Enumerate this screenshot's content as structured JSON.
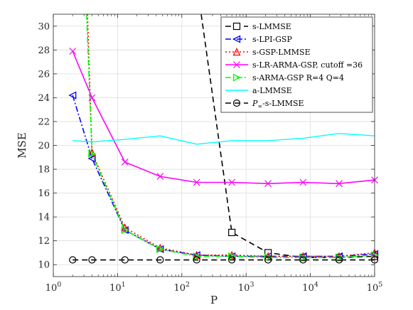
{
  "chart_data": {
    "type": "line",
    "xlabel": "P",
    "ylabel": "MSE",
    "xscale": "log",
    "xlim": [
      1,
      100000
    ],
    "ylim": [
      9,
      31
    ],
    "xticks": [
      1,
      10,
      100,
      1000,
      10000,
      100000
    ],
    "xtick_labels": [
      {
        "base": "10",
        "exp": "0"
      },
      {
        "base": "10",
        "exp": "1"
      },
      {
        "base": "10",
        "exp": "2"
      },
      {
        "base": "10",
        "exp": "3"
      },
      {
        "base": "10",
        "exp": "4"
      },
      {
        "base": "10",
        "exp": "5"
      }
    ],
    "yticks": [
      10,
      12,
      14,
      16,
      18,
      20,
      22,
      24,
      26,
      28,
      30
    ],
    "grid": true,
    "legend_position": "top-right",
    "series": [
      {
        "name": "s-LMMSE",
        "color": "#000000",
        "dash": "dashed",
        "marker": "square",
        "x": [
          200,
          600,
          2200,
          7700,
          28000,
          100000
        ],
        "y": [
          31,
          12.7,
          11.0,
          10.6,
          10.6,
          10.7
        ]
      },
      {
        "name": "s-LPI-GSP",
        "color": "#0000ff",
        "dash": "dashdot",
        "marker": "triangle-left",
        "x": [
          2,
          4,
          13,
          46,
          170,
          600,
          2200,
          7700,
          28000,
          100000
        ],
        "y": [
          24.2,
          18.9,
          12.9,
          11.3,
          10.8,
          10.7,
          10.7,
          10.7,
          10.7,
          10.9
        ]
      },
      {
        "name": "s-GSP-LMMSE",
        "color": "#ff0000",
        "dash": "dotted",
        "marker": "triangle-up",
        "x": [
          3.4,
          4,
          13,
          46,
          170,
          600,
          2200,
          7700,
          28000,
          100000
        ],
        "y": [
          31,
          19.4,
          13.1,
          11.4,
          10.8,
          10.8,
          10.7,
          10.7,
          10.7,
          11.0
        ]
      },
      {
        "name": "s-LR-ARMA-GSP, cutoff =36",
        "color": "#ff00ff",
        "dash": "solid",
        "marker": "x",
        "x": [
          2,
          4,
          13,
          46,
          170,
          600,
          2200,
          7700,
          28000,
          100000
        ],
        "y": [
          27.9,
          24.0,
          18.6,
          17.4,
          16.9,
          16.9,
          16.8,
          16.9,
          16.8,
          17.1
        ]
      },
      {
        "name": "s-ARMA-GSP R=4 Q=4",
        "color": "#00ff00",
        "dash": "dashdot",
        "marker": "triangle-right",
        "x": [
          3.3,
          4,
          13,
          46,
          170,
          600,
          2200,
          7700,
          28000,
          100000
        ],
        "y": [
          31,
          19.3,
          12.9,
          11.3,
          10.7,
          10.7,
          10.6,
          10.6,
          10.6,
          10.8
        ]
      },
      {
        "name": "a-LMMSE",
        "color": "#00ffff",
        "dash": "solid",
        "marker": "none",
        "x": [
          2,
          4,
          13,
          46,
          170,
          600,
          2200,
          7700,
          28000,
          100000
        ],
        "y": [
          20.4,
          20.3,
          20.5,
          20.8,
          20.1,
          20.4,
          20.4,
          20.6,
          21.0,
          20.8
        ]
      },
      {
        "name_base": "P",
        "name_sub": "∞",
        "name_rest": "-s-LMMSE",
        "color": "#000000",
        "dash": "dashed",
        "marker": "circle",
        "x": [
          2,
          4,
          13,
          46,
          170,
          600,
          2200,
          7700,
          28000,
          100000
        ],
        "y": [
          10.4,
          10.4,
          10.4,
          10.4,
          10.4,
          10.4,
          10.4,
          10.4,
          10.4,
          10.4
        ]
      }
    ]
  }
}
